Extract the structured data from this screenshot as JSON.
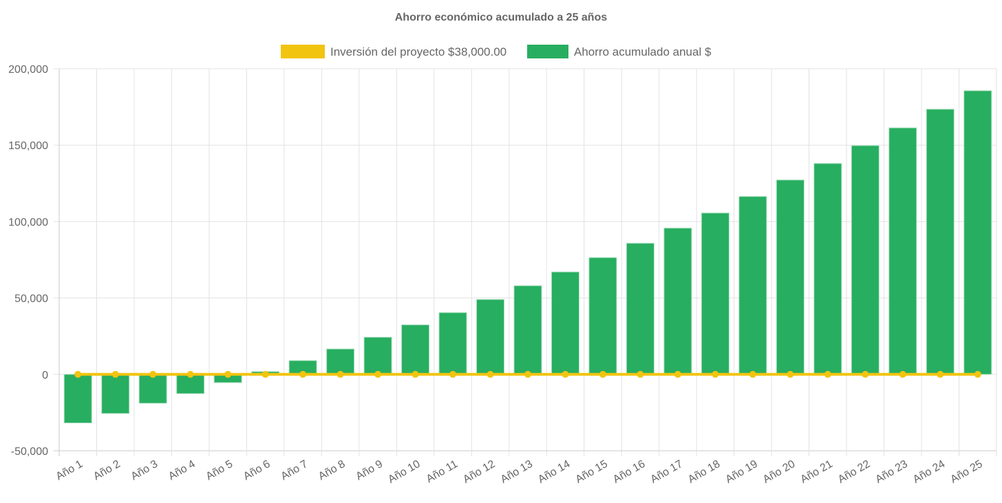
{
  "chart_data": {
    "type": "bar",
    "title": "Ahorro económico acumulado a 25 años",
    "xlabel": "",
    "ylabel": "",
    "ylim": [
      -50000,
      200000
    ],
    "yticks": [
      -50000,
      0,
      50000,
      100000,
      150000,
      200000
    ],
    "ytick_labels": [
      "-50,000",
      "0",
      "50,000",
      "100,000",
      "150,000",
      "200,000"
    ],
    "grid": true,
    "legend_position": "top",
    "categories": [
      "Año 1",
      "Año 2",
      "Año 3",
      "Año 4",
      "Año 5",
      "Año 6",
      "Año 7",
      "Año 8",
      "Año 9",
      "Año 10",
      "Año 11",
      "Año 12",
      "Año 13",
      "Año 14",
      "Año 15",
      "Año 16",
      "Año 17",
      "Año 18",
      "Año 19",
      "Año 20",
      "Año 21",
      "Año 22",
      "Año 23",
      "Año 24",
      "Año 25"
    ],
    "series": [
      {
        "name": "Inversión del proyecto $38,000.00",
        "type": "line",
        "color": "#f1c40f",
        "values": [
          0,
          0,
          0,
          0,
          0,
          0,
          0,
          0,
          0,
          0,
          0,
          0,
          0,
          0,
          0,
          0,
          0,
          0,
          0,
          0,
          0,
          0,
          0,
          0,
          0
        ]
      },
      {
        "name": "Ahorro acumulado anual $",
        "type": "bar",
        "color": "#27ae60",
        "values": [
          -31800,
          -25600,
          -18900,
          -12600,
          -5400,
          1800,
          9000,
          16600,
          24300,
          32400,
          40400,
          49000,
          58000,
          67000,
          76400,
          85800,
          95700,
          105600,
          116400,
          127200,
          138000,
          149700,
          161300,
          173500,
          185600
        ]
      }
    ]
  }
}
